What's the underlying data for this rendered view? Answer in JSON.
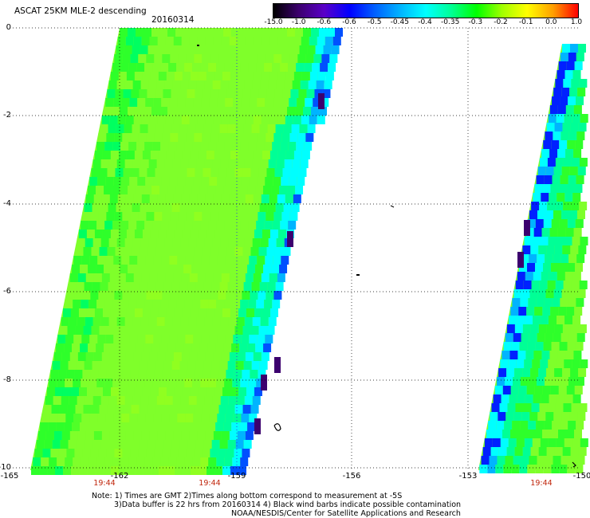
{
  "header": {
    "title": "ASCAT 25KM MLE-2 descending",
    "date": "20160314"
  },
  "colorbar": {
    "labels": [
      "-15.0",
      "-1.0",
      "-0.6",
      "-0.6",
      "-0.5",
      "-0.45",
      "-0.4",
      "-0.35",
      "-0.3",
      "-0.2",
      "-0.1",
      "0.0",
      "1.0"
    ],
    "colors": [
      "#000000",
      "#3c006e",
      "#5a00c8",
      "#0000ff",
      "#0060ff",
      "#00b4ff",
      "#00ffff",
      "#00ff96",
      "#00ff00",
      "#a0ff00",
      "#ffff00",
      "#ffa000",
      "#ff0000"
    ]
  },
  "axes": {
    "y_labels": [
      "0",
      "-2",
      "-4",
      "-6",
      "-8",
      "-10"
    ],
    "x_labels": [
      "-165",
      "-162",
      "-159",
      "-156",
      "-153",
      "-150"
    ]
  },
  "time_labels": [
    "19:44",
    "19:44",
    "19:44"
  ],
  "notes": {
    "line1": "Note: 1) Times are GMT 2)Times along bottom correspond to measurement at -5S",
    "line2": "3)Data buffer is 22 hrs from 20160314 4) Black wind barbs indicate possible contamination",
    "line3": "NOAA/NESDIS/Center for Satellite Applications and Research"
  },
  "colors": {
    "field_main": "#7fff2a",
    "field_green": "#2eff2a",
    "time_label": "#c0260c"
  }
}
